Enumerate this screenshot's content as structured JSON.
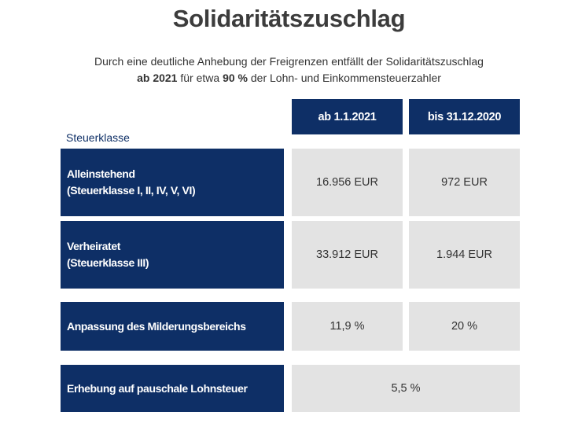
{
  "title": "Solidaritätszuschlag",
  "subtitle": {
    "line1": "Durch eine deutliche Anhebung der Freigrenzen entfällt der Solidaritätszuschlag",
    "line2_bold_a": "ab 2021",
    "line2_text_a": " für etwa ",
    "line2_bold_b": "90 %",
    "line2_text_b": " der Lohn- und Einkommensteuerzahler"
  },
  "table": {
    "row_header_label": "Steuerklasse",
    "columns": [
      "ab 1.1.2021",
      "bis 31.12.2020"
    ],
    "rows": [
      {
        "label_line1": "Alleinstehend",
        "label_line2": "(Steuerklasse I, II, IV, V, VI)",
        "values": [
          "16.956 EUR",
          "972 EUR"
        ]
      },
      {
        "label_line1": "Verheiratet",
        "label_line2": "(Steuerklasse III)",
        "values": [
          "33.912 EUR",
          "1.944 EUR"
        ]
      },
      {
        "label_line1": "Anpassung des Milderungsbereichs",
        "values": [
          "11,9 %",
          "20 %"
        ]
      },
      {
        "label_line1": "Erhebung auf pauschale Lohnsteuer",
        "value_span": "5,5 %"
      }
    ]
  },
  "colors": {
    "header_blue": "#0e2f66",
    "cell_gray": "#e3e3e3",
    "title_gray": "#3c3c3c"
  }
}
